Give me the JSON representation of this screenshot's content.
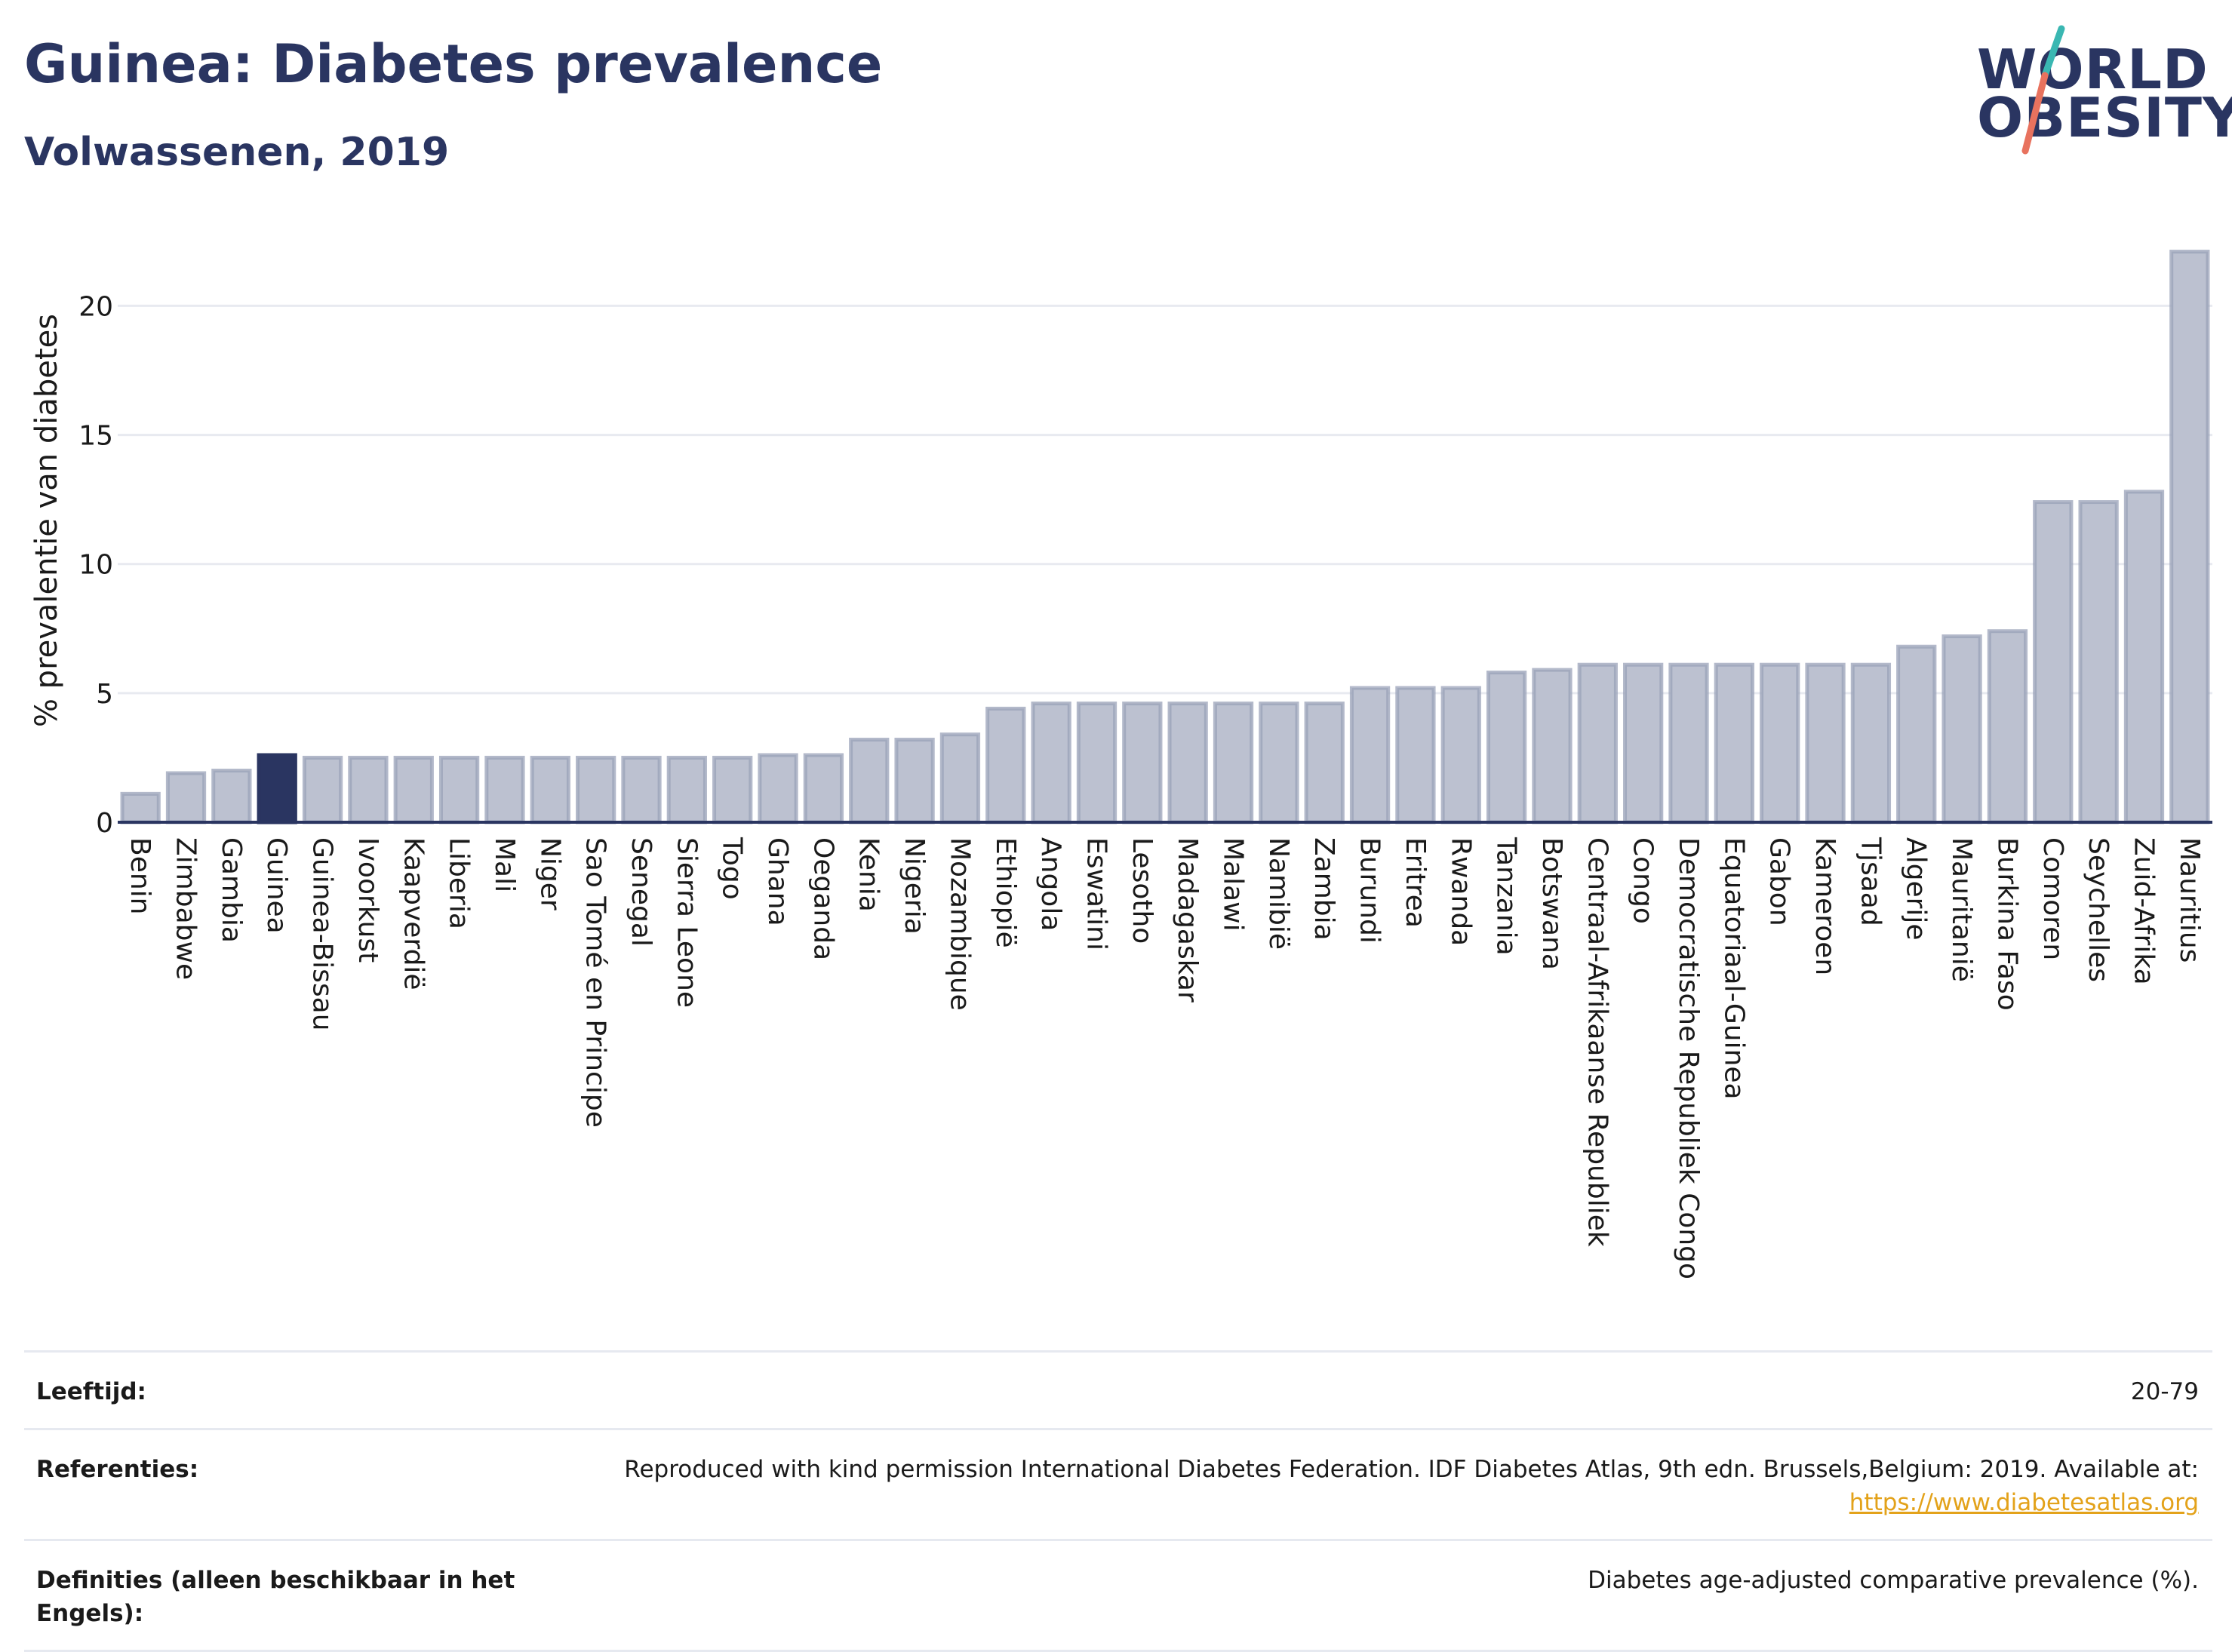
{
  "header": {
    "title": "Guinea: Diabetes prevalence",
    "subtitle": "Volwassenen, 2019"
  },
  "logo": {
    "line1": "WORLD",
    "line2": "OBESITY",
    "colors": {
      "text": "#2a3561",
      "slash_top": "#3ab7b2",
      "slash_bottom": "#e8725e"
    }
  },
  "colors": {
    "bar_default": "#bcc1d0",
    "bar_default_edge": "#9aa1b8",
    "bar_highlight": "#2a3561",
    "grid": "#e8eaf0",
    "axis": "#2a3561"
  },
  "chart_data": {
    "type": "bar",
    "title": "Guinea: Diabetes prevalence",
    "subtitle": "Volwassenen, 2019",
    "ylabel": "% prevalentie van diabetes",
    "xlabel": "",
    "ylim": [
      0,
      22.7
    ],
    "yticks": [
      0,
      5,
      10,
      15,
      20
    ],
    "grid": true,
    "highlight": "Guinea",
    "categories": [
      "Benin",
      "Zimbabwe",
      "Gambia",
      "Guinea",
      "Guinea-Bissau",
      "Ivoorkust",
      "Kaapverdië",
      "Liberia",
      "Mali",
      "Niger",
      "Sao Tomé en Principe",
      "Senegal",
      "Sierra Leone",
      "Togo",
      "Ghana",
      "Oeganda",
      "Kenia",
      "Nigeria",
      "Mozambique",
      "Ethiopië",
      "Angola",
      "Eswatini",
      "Lesotho",
      "Madagaskar",
      "Malawi",
      "Namibië",
      "Zambia",
      "Burundi",
      "Eritrea",
      "Rwanda",
      "Tanzania",
      "Botswana",
      "Centraal-Afrikaanse Republiek",
      "Congo",
      "Democratische Republiek Congo",
      "Equatoriaal-Guinea",
      "Gabon",
      "Kameroen",
      "Tjsaad",
      "Algerije",
      "Mauritanië",
      "Burkina Faso",
      "Comoren",
      "Seychelles",
      "Zuid-Afrika",
      "Mauritius"
    ],
    "values": [
      1.1,
      1.9,
      2.0,
      2.6,
      2.5,
      2.5,
      2.5,
      2.5,
      2.5,
      2.5,
      2.5,
      2.5,
      2.5,
      2.5,
      2.6,
      2.6,
      3.2,
      3.2,
      3.4,
      4.4,
      4.6,
      4.6,
      4.6,
      4.6,
      4.6,
      4.6,
      4.6,
      5.2,
      5.2,
      5.2,
      5.8,
      5.9,
      6.1,
      6.1,
      6.1,
      6.1,
      6.1,
      6.1,
      6.1,
      6.8,
      7.2,
      7.4,
      12.4,
      12.4,
      12.8,
      22.1
    ]
  },
  "metadata": {
    "age_label": "Leeftijd:",
    "age_value": "20-79",
    "references_label": "Referenties:",
    "references_text": "Reproduced with kind permission International Diabetes Federation. IDF Diabetes Atlas, 9th edn. Brussels,Belgium: 2019. Available at:",
    "references_link": "https://www.diabetesatlas.org",
    "definitions_label": "Definities (alleen beschikbaar in het Engels):",
    "definitions_value": "Diabetes age-adjusted comparative prevalence (%)."
  }
}
